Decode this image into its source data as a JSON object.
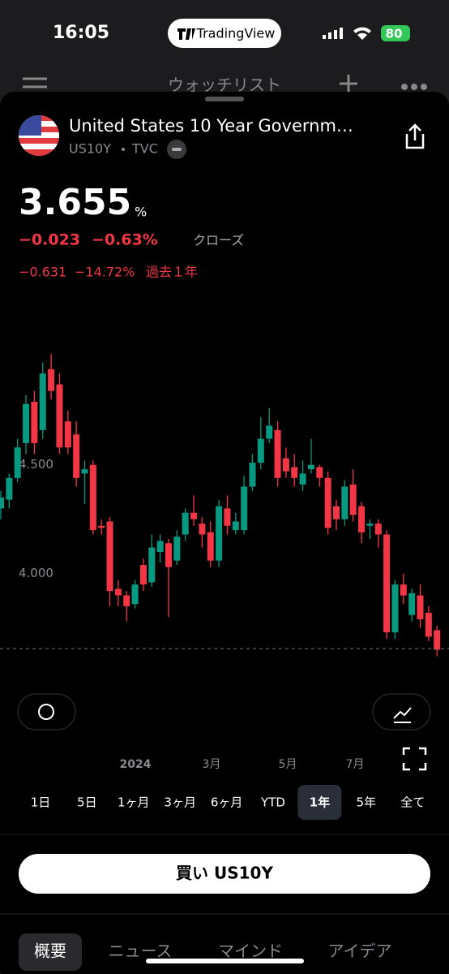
{
  "status_bar": {
    "time": "16:05",
    "app": "TradingView",
    "battery": "80"
  },
  "nav": {
    "title": "ウォッチリスト"
  },
  "symbol": {
    "name": "United States 10 Year Governm…",
    "ticker": "US10Y",
    "exchange": "TVC"
  },
  "quote": {
    "price": 3.655,
    "unit": "%",
    "change": "−0.023",
    "change_pct": "−0.63%",
    "status": "クローズ",
    "period_change": "−0.631",
    "period_change_pct": "−14.72%",
    "period": "過去１年"
  },
  "chart_data": {
    "type": "candlestick",
    "open": [
      4.3,
      4.34,
      4.44,
      4.6,
      4.79,
      4.66,
      4.94,
      4.87,
      4.7,
      4.64,
      4.46,
      4.5,
      4.22,
      4.24,
      3.93,
      3.9,
      3.86,
      4.04,
      3.96,
      4.1,
      4.14,
      4.06,
      4.18,
      4.28,
      4.23,
      4.19,
      4.06,
      4.3,
      4.2,
      4.2,
      4.4,
      4.51,
      4.62,
      4.66,
      4.53,
      4.49,
      4.41,
      4.48,
      4.49,
      4.44,
      4.31,
      4.25,
      4.41,
      4.31,
      4.22,
      4.23,
      4.18,
      3.73,
      3.95,
      3.81,
      3.9,
      3.82,
      3.74
    ],
    "high": [
      4.38,
      4.46,
      4.62,
      4.82,
      4.84,
      4.97,
      5.01,
      4.92,
      4.75,
      4.7,
      4.52,
      4.52,
      4.25,
      4.26,
      3.97,
      3.92,
      3.97,
      4.07,
      4.18,
      4.18,
      4.16,
      4.2,
      4.3,
      4.36,
      4.26,
      4.24,
      4.34,
      4.36,
      4.28,
      4.45,
      4.55,
      4.72,
      4.76,
      4.7,
      4.58,
      4.55,
      4.52,
      4.62,
      4.5,
      4.47,
      4.34,
      4.43,
      4.48,
      4.33,
      4.25,
      4.25,
      4.2,
      3.97,
      4.0,
      3.93,
      3.95,
      3.85,
      3.76
    ],
    "low": [
      4.25,
      4.3,
      4.42,
      4.55,
      4.55,
      4.62,
      4.8,
      4.55,
      4.55,
      4.4,
      4.32,
      4.18,
      4.18,
      3.85,
      3.85,
      3.78,
      3.84,
      3.92,
      3.94,
      4.05,
      3.8,
      4.04,
      4.15,
      4.22,
      4.12,
      4.03,
      4.03,
      4.18,
      4.18,
      4.18,
      4.38,
      4.48,
      4.6,
      4.4,
      4.44,
      4.4,
      4.38,
      4.46,
      4.4,
      4.18,
      4.2,
      4.22,
      4.24,
      4.14,
      4.16,
      4.12,
      3.7,
      3.7,
      3.86,
      3.78,
      3.75,
      3.69,
      3.62
    ],
    "close": [
      4.35,
      4.44,
      4.58,
      4.78,
      4.6,
      4.92,
      4.84,
      4.58,
      4.58,
      4.44,
      4.48,
      4.2,
      4.21,
      3.92,
      3.9,
      3.85,
      3.95,
      3.95,
      4.12,
      4.15,
      4.03,
      4.17,
      4.28,
      4.25,
      4.18,
      4.06,
      4.31,
      4.22,
      4.24,
      4.4,
      4.51,
      4.62,
      4.68,
      4.44,
      4.47,
      4.44,
      4.46,
      4.5,
      4.44,
      4.21,
      4.25,
      4.4,
      4.27,
      4.19,
      4.23,
      4.18,
      3.73,
      3.95,
      3.9,
      3.91,
      3.79,
      3.71,
      3.65
    ],
    "up_color": "#089981",
    "down_color": "#f23645",
    "ylim": [
      3.54,
      5.07
    ],
    "yticks": [
      {
        "value": 4.5,
        "label": "4.500"
      },
      {
        "value": 4.0,
        "label": "4.000"
      }
    ],
    "x_labels": [
      "2024",
      "3月",
      "5月",
      "7月"
    ]
  },
  "ranges": {
    "options": [
      "1日",
      "5日",
      "1ヶ月",
      "3ヶ月",
      "6ヶ月",
      "YTD",
      "1年",
      "5年",
      "全て"
    ],
    "selected": 6
  },
  "buy_button": "買い US10Y",
  "tabs": {
    "items": [
      "概要",
      "ニュース",
      "マインド",
      "アイデア"
    ],
    "selected": 0
  }
}
